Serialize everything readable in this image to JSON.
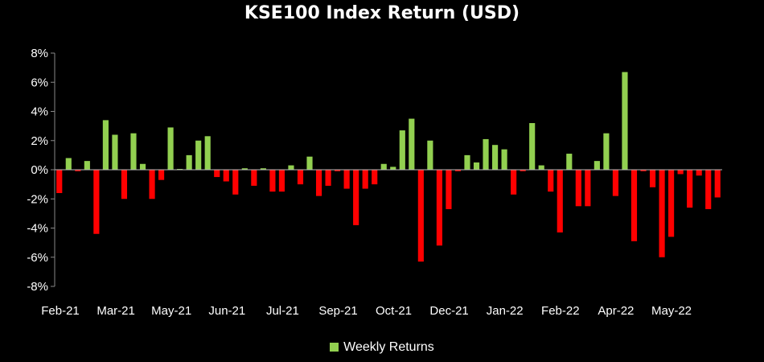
{
  "chart_data": {
    "type": "bar",
    "title": "KSE100 Index Return (USD)",
    "xlabel": "",
    "ylabel": "",
    "ylim": [
      -8,
      8
    ],
    "ytick_step": 2,
    "ytick_format": "percent",
    "grid": false,
    "legend_position": "bottom",
    "x_tick_labels": [
      "Feb-21",
      "Mar-21",
      "May-21",
      "Jun-21",
      "Jul-21",
      "Sep-21",
      "Oct-21",
      "Dec-21",
      "Jan-22",
      "Feb-22",
      "Apr-22",
      "May-22"
    ],
    "series": [
      {
        "name": "Weekly Returns",
        "color": "#92D050",
        "negative_color": "#FF0000",
        "values": [
          -1.6,
          0.8,
          -0.1,
          0.6,
          -4.4,
          3.4,
          2.4,
          -2.0,
          2.5,
          0.4,
          -2.0,
          -0.7,
          2.9,
          0.0,
          1.0,
          2.0,
          2.3,
          -0.5,
          -0.8,
          -1.7,
          0.1,
          -1.1,
          0.1,
          -1.5,
          -1.5,
          0.3,
          -1.0,
          0.9,
          -1.8,
          -1.1,
          -0.1,
          -1.3,
          -3.8,
          -1.3,
          -1.0,
          0.4,
          0.2,
          2.7,
          3.5,
          -6.3,
          2.0,
          -5.2,
          -2.7,
          -0.1,
          1.0,
          0.5,
          2.1,
          1.7,
          1.4,
          -1.7,
          -0.1,
          3.2,
          0.3,
          -1.5,
          -4.3,
          1.1,
          -2.5,
          -2.5,
          0.6,
          2.5,
          -1.8,
          6.7,
          -4.9,
          -0.1,
          -1.2,
          -6.0,
          -4.6,
          -0.3,
          -2.6,
          -0.4,
          -2.7,
          -1.9
        ]
      }
    ]
  }
}
